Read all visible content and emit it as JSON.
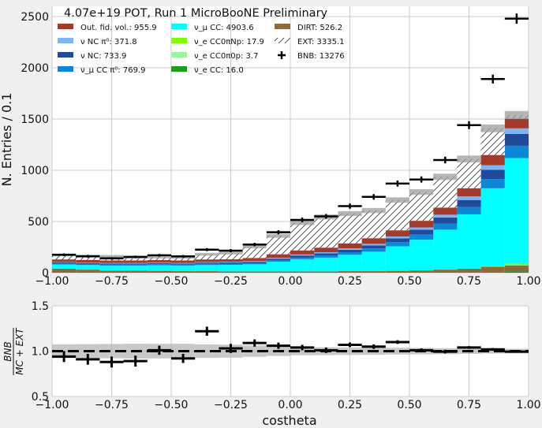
{
  "chart_data": [
    {
      "type": "bar",
      "stacked": true,
      "title": "4.07e+19 POT, Run 1 MicroBooNE Preliminary",
      "ylabel": "N. Entries  / 0.1",
      "xlim": [
        -1.0,
        1.0
      ],
      "ylim": [
        0,
        2600
      ],
      "grid": true,
      "legend_position": "top-left",
      "x_ticks": [
        "−1.00",
        "−0.75",
        "−0.50",
        "−0.25",
        "0.00",
        "0.25",
        "0.50",
        "0.75",
        "1.00"
      ],
      "y_ticks": [
        "0",
        "500",
        "1000",
        "1500",
        "2000",
        "2500"
      ],
      "bin_edges": [
        -1.0,
        -0.9,
        -0.8,
        -0.7,
        -0.6,
        -0.5,
        -0.4,
        -0.3,
        -0.2,
        -0.1,
        0.0,
        0.1,
        0.2,
        0.3,
        0.4,
        0.5,
        0.6,
        0.7,
        0.8,
        0.9,
        1.0
      ],
      "series": [
        {
          "key": "nue_cc",
          "label": "ν_e CC: 16.0",
          "color": "#1a9e1a",
          "values": [
            0,
            0,
            0,
            0,
            0,
            0,
            0,
            0,
            0,
            0,
            0,
            0,
            0,
            0,
            0,
            0,
            0,
            0,
            4,
            12
          ]
        },
        {
          "key": "dirt",
          "label": "DIRT: 526.2",
          "color": "#8b6b3c",
          "values": [
            40,
            30,
            20,
            20,
            18,
            15,
            15,
            12,
            12,
            12,
            12,
            12,
            15,
            15,
            18,
            22,
            30,
            40,
            55,
            60
          ]
        },
        {
          "key": "nue_cc0pi0p",
          "label": "ν_e CC0π0p: 3.7",
          "color": "#99f599",
          "values": [
            0,
            0,
            0,
            0,
            0,
            0,
            0,
            0,
            0,
            0,
            0,
            0,
            0,
            0,
            0,
            0,
            0,
            0,
            0,
            4
          ]
        },
        {
          "key": "nue_cc0pinp",
          "label": "ν_e CC0πNp: 17.9",
          "color": "#7fff00",
          "values": [
            0,
            0,
            0,
            0,
            0,
            0,
            0,
            0,
            0,
            0,
            0,
            0,
            0,
            0,
            0,
            0,
            0,
            0,
            5,
            13
          ]
        },
        {
          "key": "numu_cc",
          "label": "ν_μ CC: 4903.6",
          "color": "#00ffff",
          "values": [
            40,
            45,
            50,
            50,
            55,
            55,
            60,
            65,
            70,
            95,
            120,
            135,
            160,
            190,
            240,
            300,
            390,
            530,
            760,
            1030
          ]
        },
        {
          "key": "numu_cc_pi0",
          "label": "ν_μ CC π⁰: 769.9",
          "color": "#0a87d6",
          "values": [
            10,
            10,
            10,
            10,
            10,
            10,
            12,
            12,
            12,
            15,
            18,
            22,
            25,
            32,
            40,
            50,
            60,
            70,
            90,
            120
          ]
        },
        {
          "key": "nu_nc",
          "label": "ν NC: 733.9",
          "color": "#1f4b9a",
          "values": [
            10,
            10,
            10,
            10,
            10,
            10,
            12,
            12,
            13,
            15,
            18,
            20,
            24,
            30,
            38,
            48,
            58,
            70,
            90,
            115
          ]
        },
        {
          "key": "nu_nc_pi0",
          "label": "ν NC π⁰: 371.8",
          "color": "#7bb6f5",
          "values": [
            5,
            5,
            5,
            5,
            5,
            5,
            6,
            6,
            7,
            8,
            10,
            11,
            13,
            15,
            18,
            22,
            28,
            35,
            45,
            55
          ]
        },
        {
          "key": "out_fid",
          "label": "Out. fid. vol.: 955.9",
          "color": "#a33a2c",
          "values": [
            25,
            25,
            25,
            25,
            25,
            25,
            25,
            25,
            30,
            35,
            40,
            45,
            50,
            55,
            60,
            65,
            70,
            80,
            100,
            95
          ]
        },
        {
          "key": "ext",
          "label": "EXT: 3335.1",
          "color": "#ffffff",
          "hatch": true,
          "values": [
            45,
            40,
            40,
            30,
            30,
            30,
            50,
            60,
            110,
            180,
            270,
            300,
            290,
            270,
            295,
            280,
            300,
            285,
            260,
            35
          ]
        }
      ],
      "mc_stat_band_color": "#9e9e9e",
      "data_series": {
        "label": "BNB: 13276",
        "color": "#000000",
        "values": [
          175,
          160,
          140,
          155,
          170,
          160,
          225,
          215,
          275,
          395,
          515,
          550,
          650,
          740,
          870,
          910,
          1100,
          1440,
          1890,
          2480
        ],
        "errors": [
          13,
          13,
          12,
          12,
          13,
          13,
          15,
          15,
          17,
          20,
          23,
          23,
          25,
          27,
          30,
          30,
          33,
          38,
          43,
          50
        ]
      }
    },
    {
      "type": "scatter",
      "ylabel": "BNB / (MC + EXT)",
      "xlabel": "costheta",
      "xlim": [
        -1.0,
        1.0
      ],
      "ylim": [
        0.5,
        1.5
      ],
      "grid": true,
      "x_ticks": [
        "−1.00",
        "−0.75",
        "−0.50",
        "−0.25",
        "0.00",
        "0.25",
        "0.50",
        "0.75",
        "1.00"
      ],
      "y_ticks": [
        "0.5",
        "1.0",
        "1.5"
      ],
      "reference_line": 1.0,
      "x": [
        -0.95,
        -0.85,
        -0.75,
        -0.65,
        -0.55,
        -0.45,
        -0.35,
        -0.25,
        -0.15,
        -0.05,
        0.05,
        0.15,
        0.25,
        0.35,
        0.45,
        0.55,
        0.65,
        0.75,
        0.85,
        0.95
      ],
      "values": [
        0.94,
        0.91,
        0.88,
        0.89,
        1.01,
        0.92,
        1.22,
        1.03,
        1.09,
        1.06,
        1.04,
        1.01,
        1.07,
        1.05,
        1.1,
        1.01,
        0.995,
        1.04,
        1.02,
        0.995
      ],
      "errors": [
        0.06,
        0.06,
        0.06,
        0.06,
        0.05,
        0.05,
        0.05,
        0.05,
        0.04,
        0.035,
        0.03,
        0.03,
        0.025,
        0.025,
        0.02,
        0.02,
        0.02,
        0.015,
        0.015,
        0.01
      ]
    }
  ]
}
